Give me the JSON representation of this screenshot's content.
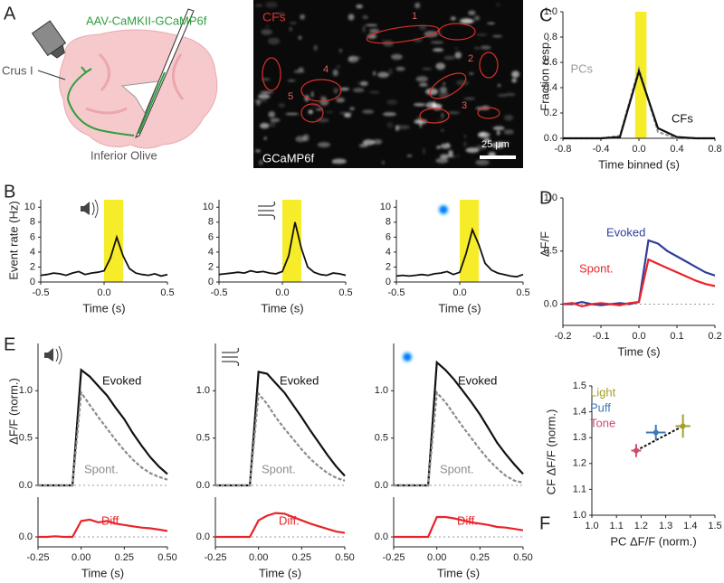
{
  "figure": {
    "panel_labels": [
      "A",
      "B",
      "C",
      "D",
      "E",
      "F"
    ],
    "schematic": {
      "virus": "AAV-CaMKII-GCaMP6f",
      "region": "Crus I",
      "target": "Inferior Olive"
    },
    "image": {
      "label": "CFs",
      "indicator": "GCaMP6f",
      "scale_bar": "25 μm",
      "roi_labels": [
        "1",
        "2",
        "3",
        "4",
        "5"
      ]
    }
  },
  "chart_data": [
    {
      "type": "line",
      "xlabel": "Time binned (s)",
      "ylabel": "Fraction resp.",
      "x": [
        -0.8,
        -0.6,
        -0.4,
        -0.2,
        0,
        0.2,
        0.4,
        0.6,
        0.8
      ],
      "series": [
        {
          "name": "PCs",
          "color": "#9a9a9a",
          "dashed": true,
          "values": [
            0,
            0,
            0,
            0.02,
            0.55,
            0.05,
            0,
            0,
            0
          ]
        },
        {
          "name": "CFs",
          "color": "#111111",
          "values": [
            0,
            0,
            0,
            0.01,
            0.53,
            0.08,
            0.01,
            0,
            0
          ]
        }
      ],
      "stimulus_window": [
        -0.04,
        0.08
      ],
      "window_color": "#f7ec2a",
      "xlim": [
        -0.8,
        0.8
      ],
      "ylim": [
        0,
        1
      ],
      "xticks": [
        -0.8,
        -0.4,
        {
          "value": 0,
          "label": "0.0"
        },
        0.4,
        0.8
      ],
      "yticks": [
        {
          "value": 0,
          "label": "0.0"
        },
        0.2,
        0.4,
        0.6,
        0.8,
        {
          "value": 1,
          "label": "1.0"
        }
      ]
    },
    {
      "type": "line",
      "xlabel": "Time (s)",
      "ylabel": "Event rate (Hz)",
      "color": "#111111",
      "x": [
        -0.5,
        -0.45,
        -0.4,
        -0.35,
        -0.3,
        -0.25,
        -0.2,
        -0.15,
        -0.1,
        -0.05,
        0,
        0.05,
        0.1,
        0.15,
        0.2,
        0.25,
        0.3,
        0.35,
        0.4,
        0.45,
        0.5
      ],
      "values": [
        0.9,
        1.0,
        1.2,
        1.1,
        0.9,
        1.2,
        1.4,
        1.0,
        1.2,
        1.3,
        1.5,
        3.2,
        6.0,
        3.5,
        1.8,
        1.2,
        1.0,
        0.9,
        1.1,
        0.8,
        1.0
      ],
      "stimulus_window": [
        0,
        0.15
      ],
      "window_color": "#f7ec2a",
      "xlim": [
        -0.5,
        0.5
      ],
      "ylim": [
        0,
        11
      ],
      "xticks": [
        -0.5,
        {
          "value": 0,
          "label": "0.0"
        },
        0.5
      ],
      "yticks": [
        0,
        2,
        4,
        6,
        8,
        10
      ]
    },
    {
      "type": "line",
      "xlabel": "Time (s)",
      "color": "#111111",
      "x": [
        -0.5,
        -0.45,
        -0.4,
        -0.35,
        -0.3,
        -0.25,
        -0.2,
        -0.15,
        -0.1,
        -0.05,
        0,
        0.05,
        0.1,
        0.15,
        0.2,
        0.25,
        0.3,
        0.35,
        0.4,
        0.45,
        0.5
      ],
      "values": [
        1.0,
        1.1,
        1.2,
        1.3,
        1.2,
        1.5,
        1.3,
        1.4,
        1.2,
        1.1,
        1.4,
        3.5,
        8.0,
        4.5,
        2.0,
        1.3,
        1.0,
        0.9,
        1.2,
        1.1,
        0.9
      ],
      "stimulus_window": [
        0,
        0.15
      ],
      "window_color": "#f7ec2a",
      "xlim": [
        -0.5,
        0.5
      ],
      "ylim": [
        0,
        11
      ],
      "xticks": [
        -0.5,
        {
          "value": 0,
          "label": "0.0"
        },
        0.5
      ],
      "yticks": [
        0,
        2,
        4,
        6,
        8,
        10
      ]
    },
    {
      "type": "line",
      "xlabel": "Time (s)",
      "color": "#111111",
      "x": [
        -0.5,
        -0.45,
        -0.4,
        -0.35,
        -0.3,
        -0.25,
        -0.2,
        -0.15,
        -0.1,
        -0.05,
        0,
        0.05,
        0.1,
        0.15,
        0.2,
        0.25,
        0.3,
        0.35,
        0.4,
        0.45,
        0.5
      ],
      "values": [
        0.8,
        0.9,
        0.8,
        0.9,
        1.0,
        0.9,
        1.1,
        1.2,
        1.4,
        1.0,
        1.3,
        3.8,
        7.0,
        5.0,
        2.5,
        1.6,
        1.2,
        1.0,
        0.8,
        0.7,
        1.0
      ],
      "stimulus_window": [
        0,
        0.15
      ],
      "window_color": "#f7ec2a",
      "xlim": [
        -0.5,
        0.5
      ],
      "ylim": [
        0,
        11
      ],
      "xticks": [
        -0.5,
        {
          "value": 0,
          "label": "0.0"
        },
        0.5
      ],
      "yticks": [
        0,
        2,
        4,
        6,
        8,
        10
      ]
    },
    {
      "type": "line",
      "xlabel": "Time (s)",
      "ylabel": "ΔF/F",
      "zero_line": true,
      "x": [
        -0.2,
        -0.175,
        -0.15,
        -0.125,
        -0.1,
        -0.075,
        -0.05,
        -0.025,
        0,
        0.025,
        0.05,
        0.075,
        0.1,
        0.125,
        0.15,
        0.175,
        0.2
      ],
      "series": [
        {
          "name": "Evoked",
          "color": "#2e3f99",
          "values": [
            0,
            0,
            0.02,
            0,
            -0.01,
            0,
            0.01,
            0,
            0.02,
            0.6,
            0.57,
            0.5,
            0.45,
            0.4,
            0.35,
            0.3,
            0.27
          ]
        },
        {
          "name": "Spont.",
          "color": "#e8242a",
          "values": [
            0,
            0.01,
            -0.02,
            0,
            0.01,
            0,
            -0.01,
            0.01,
            0.02,
            0.42,
            0.38,
            0.34,
            0.3,
            0.26,
            0.22,
            0.19,
            0.17
          ]
        }
      ],
      "xlim": [
        -0.2,
        0.2
      ],
      "ylim": [
        -0.2,
        1.0
      ],
      "xticks": [
        -0.2,
        -0.1,
        {
          "value": 0,
          "label": "0.0"
        },
        0.1,
        0.2
      ],
      "yticks": [
        {
          "value": 0,
          "label": "0.0"
        },
        0.5,
        {
          "value": 1,
          "label": "1.0"
        }
      ]
    },
    {
      "type": "line",
      "ylabel": "ΔF/F (norm.)",
      "zero_line": true,
      "x": [
        -0.25,
        -0.2,
        -0.15,
        -0.1,
        -0.05,
        0,
        0.05,
        0.1,
        0.15,
        0.2,
        0.25,
        0.3,
        0.35,
        0.4,
        0.45,
        0.5
      ],
      "series": [
        {
          "name": "Evoked",
          "color": "#111111",
          "values": [
            0,
            0,
            0,
            0,
            0,
            1.22,
            1.15,
            1.05,
            0.95,
            0.82,
            0.7,
            0.55,
            0.42,
            0.3,
            0.2,
            0.12
          ]
        },
        {
          "name": "Spont.",
          "color": "#8c8c8c",
          "dashed": true,
          "values": [
            0,
            0,
            0,
            0,
            0,
            0.98,
            0.85,
            0.72,
            0.6,
            0.48,
            0.37,
            0.27,
            0.19,
            0.13,
            0.09,
            0.06
          ]
        }
      ],
      "xlim": [
        -0.25,
        0.5
      ],
      "ylim": [
        0,
        1.5
      ],
      "yticks": [
        {
          "value": 0,
          "label": "0.0"
        },
        0.5,
        {
          "value": 1,
          "label": "1.0"
        }
      ]
    },
    {
      "type": "line",
      "xlabel": "Time (s)",
      "zero_line": true,
      "x": [
        -0.25,
        -0.2,
        -0.15,
        -0.1,
        -0.05,
        0,
        0.05,
        0.1,
        0.15,
        0.2,
        0.25,
        0.3,
        0.35,
        0.4,
        0.45,
        0.5
      ],
      "series": [
        {
          "name": "Diff.",
          "color": "#e8242a",
          "values": [
            0,
            0,
            0.01,
            0,
            0,
            0.24,
            0.26,
            0.22,
            0.24,
            0.2,
            0.18,
            0.16,
            0.14,
            0.13,
            0.11,
            0.09
          ]
        }
      ],
      "xlim": [
        -0.25,
        0.5
      ],
      "ylim": [
        -0.15,
        0.6
      ],
      "xticks": [
        -0.25,
        {
          "value": 0,
          "label": "0.00"
        },
        0.25,
        {
          "value": 0.5,
          "label": "0.50"
        }
      ],
      "yticks": [
        {
          "value": 0,
          "label": "0.0"
        }
      ]
    },
    {
      "type": "line",
      "zero_line": true,
      "x": [
        -0.25,
        -0.2,
        -0.15,
        -0.1,
        -0.05,
        0,
        0.05,
        0.1,
        0.15,
        0.2,
        0.25,
        0.3,
        0.35,
        0.4,
        0.45,
        0.5
      ],
      "series": [
        {
          "name": "Evoked",
          "color": "#111111",
          "values": [
            0,
            0,
            0,
            0,
            0,
            1.2,
            1.18,
            1.08,
            0.98,
            0.85,
            0.72,
            0.58,
            0.45,
            0.32,
            0.2,
            0.1
          ]
        },
        {
          "name": "Spont.",
          "color": "#8c8c8c",
          "dashed": true,
          "values": [
            0,
            0,
            0,
            0,
            0,
            0.97,
            0.86,
            0.72,
            0.6,
            0.49,
            0.38,
            0.28,
            0.2,
            0.13,
            0.08,
            0.05
          ]
        }
      ],
      "xlim": [
        -0.25,
        0.5
      ],
      "ylim": [
        0,
        1.5
      ],
      "yticks": [
        {
          "value": 0,
          "label": "0.0"
        },
        0.5,
        {
          "value": 1,
          "label": "1.0"
        }
      ]
    },
    {
      "type": "line",
      "xlabel": "Time (s)",
      "zero_line": true,
      "x": [
        -0.25,
        -0.2,
        -0.15,
        -0.1,
        -0.05,
        0,
        0.05,
        0.1,
        0.15,
        0.2,
        0.25,
        0.3,
        0.35,
        0.4,
        0.45,
        0.5
      ],
      "series": [
        {
          "name": "Diff.",
          "color": "#e8242a",
          "values": [
            0,
            0,
            0,
            0,
            0,
            0.25,
            0.32,
            0.36,
            0.35,
            0.3,
            0.25,
            0.2,
            0.16,
            0.12,
            0.08,
            0.06
          ]
        }
      ],
      "xlim": [
        -0.25,
        0.5
      ],
      "ylim": [
        -0.15,
        0.6
      ],
      "xticks": [
        -0.25,
        {
          "value": 0,
          "label": "0.00"
        },
        0.25,
        {
          "value": 0.5,
          "label": "0.50"
        }
      ],
      "yticks": [
        {
          "value": 0,
          "label": "0.0"
        }
      ]
    },
    {
      "type": "line",
      "zero_line": true,
      "x": [
        -0.25,
        -0.2,
        -0.15,
        -0.1,
        -0.05,
        0,
        0.05,
        0.1,
        0.15,
        0.2,
        0.25,
        0.3,
        0.35,
        0.4,
        0.45,
        0.5
      ],
      "series": [
        {
          "name": "Evoked",
          "color": "#111111",
          "values": [
            0,
            0,
            0,
            0,
            0,
            1.3,
            1.22,
            1.12,
            1.0,
            0.88,
            0.75,
            0.6,
            0.45,
            0.33,
            0.22,
            0.12
          ]
        },
        {
          "name": "Spont.",
          "color": "#8c8c8c",
          "dashed": true,
          "values": [
            0,
            0,
            0,
            0,
            0,
            0.98,
            0.88,
            0.75,
            0.62,
            0.5,
            0.38,
            0.27,
            0.18,
            0.1,
            0.05,
            0.03
          ]
        }
      ],
      "xlim": [
        -0.25,
        0.5
      ],
      "ylim": [
        0,
        1.5
      ],
      "yticks": [
        {
          "value": 0,
          "label": "0.0"
        },
        0.5,
        {
          "value": 1,
          "label": "1.0"
        }
      ]
    },
    {
      "type": "line",
      "xlabel": "Time (s)",
      "zero_line": true,
      "x": [
        -0.25,
        -0.2,
        -0.15,
        -0.1,
        -0.05,
        0,
        0.05,
        0.1,
        0.15,
        0.2,
        0.25,
        0.3,
        0.35,
        0.4,
        0.45,
        0.5
      ],
      "series": [
        {
          "name": "Diff.",
          "color": "#e8242a",
          "values": [
            0,
            0,
            0,
            0,
            0,
            0.3,
            0.3,
            0.28,
            0.25,
            0.22,
            0.2,
            0.18,
            0.15,
            0.14,
            0.12,
            0.1
          ]
        }
      ],
      "xlim": [
        -0.25,
        0.5
      ],
      "ylim": [
        -0.15,
        0.6
      ],
      "xticks": [
        -0.25,
        {
          "value": 0,
          "label": "0.00"
        },
        0.25,
        {
          "value": 0.5,
          "label": "0.50"
        }
      ],
      "yticks": [
        {
          "value": 0,
          "label": "0.0"
        }
      ]
    },
    {
      "type": "scatter",
      "xlabel": "PC ΔF/F (norm.)",
      "ylabel": "CF ΔF/F (norm.)",
      "series": [
        {
          "name": "Light",
          "color": "#a5a02a",
          "x": [
            1.37
          ],
          "values": [
            1.345
          ],
          "xerr": [
            0.03
          ],
          "yerr": [
            0.045
          ]
        },
        {
          "name": "Puff",
          "color": "#3d78b8",
          "x": [
            1.26
          ],
          "values": [
            1.32
          ],
          "xerr": [
            0.04
          ],
          "yerr": [
            0.03
          ]
        },
        {
          "name": "Tone",
          "color": "#d04a6e",
          "x": [
            1.18
          ],
          "values": [
            1.25
          ],
          "xerr": [
            0.02
          ],
          "yerr": [
            0.025
          ]
        }
      ],
      "xlim": [
        1.0,
        1.5
      ],
      "ylim": [
        1.0,
        1.5
      ],
      "xticks": [
        {
          "value": 1.0,
          "label": "1.0"
        },
        1.1,
        1.2,
        1.3,
        1.4,
        1.5
      ],
      "yticks": [
        {
          "value": 1.0,
          "label": "1.0"
        },
        1.1,
        1.2,
        1.3,
        1.4,
        1.5
      ]
    }
  ]
}
